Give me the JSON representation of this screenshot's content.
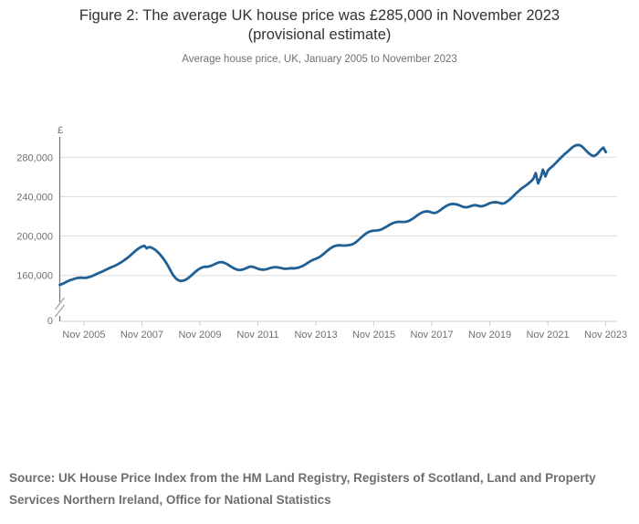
{
  "header": {
    "title_line1": "Figure 2: The average UK house price was £285,000 in November 2023",
    "title_line2": "(provisional estimate)",
    "subtitle": "Average house price, UK, January 2005 to November 2023"
  },
  "footer": {
    "source": "Source: UK House Price Index from the HM Land Registry, Registers of Scotland, Land and Property Services Northern Ireland, Office for National Statistics"
  },
  "colors": {
    "line": "#206095",
    "gridline": "#dcdcdc",
    "x_axis": "#c6d0da",
    "y_axis": "#737373",
    "axis_break": "#9f9f9f",
    "tick_text": "#707071",
    "title_text": "#323232",
    "source_text": "#6e6e6e"
  },
  "chart_data": {
    "type": "line",
    "title": "Figure 2: The average UK house price was £285,000 in November 2023 (provisional estimate)",
    "subtitle": "Average house price, UK, January 2005 to November 2023",
    "unit_label": "£",
    "frequency": "monthly",
    "x_start": "2005-01",
    "x_end": "2023-11",
    "grid": "horizontal",
    "legend": "none",
    "y_axis_break": true,
    "line_color": "#206095",
    "x_tick_labels": [
      "Nov 2005",
      "Nov 2007",
      "Nov 2009",
      "Nov 2011",
      "Nov 2013",
      "Nov 2015",
      "Nov 2017",
      "Nov 2019",
      "Nov 2021",
      "Nov 2023"
    ],
    "x_tick_months": [
      10,
      34,
      58,
      82,
      106,
      130,
      154,
      178,
      202,
      226
    ],
    "y_ticks": [
      0,
      160000,
      200000,
      240000,
      280000
    ],
    "y_tick_labels": [
      "0",
      "160,000",
      "200,000",
      "240,000",
      "280,000"
    ],
    "series": [
      {
        "name": "Average UK house price",
        "values": [
          150400,
          151300,
          152400,
          153800,
          154900,
          155700,
          156500,
          157200,
          157600,
          157700,
          157400,
          157600,
          158200,
          159000,
          160000,
          161200,
          162300,
          163300,
          164400,
          165600,
          166800,
          168000,
          169000,
          170000,
          171300,
          172800,
          174300,
          176000,
          177800,
          179800,
          182000,
          184200,
          186300,
          188000,
          189300,
          190200,
          187500,
          188800,
          188200,
          186800,
          185000,
          182600,
          179800,
          176600,
          173000,
          168800,
          164200,
          160000,
          157000,
          155200,
          154300,
          154600,
          155500,
          157000,
          159000,
          161200,
          163400,
          165400,
          167000,
          168200,
          168800,
          168700,
          169300,
          170200,
          171300,
          172400,
          173300,
          173500,
          172900,
          171800,
          170300,
          168800,
          167300,
          166200,
          165500,
          165600,
          166200,
          167200,
          168300,
          169000,
          168700,
          167800,
          166800,
          166100,
          165800,
          166000,
          166600,
          167400,
          168100,
          168400,
          168200,
          167800,
          167200,
          166800,
          166800,
          167100,
          167300,
          167200,
          167500,
          168100,
          169000,
          170200,
          171700,
          173300,
          174800,
          176000,
          176900,
          178000,
          179500,
          181400,
          183500,
          185600,
          187500,
          189000,
          190000,
          190500,
          190600,
          190400,
          190300,
          190500,
          190900,
          191500,
          192800,
          194600,
          196800,
          199000,
          201200,
          203000,
          204300,
          205100,
          205500,
          205600,
          205900,
          206600,
          207800,
          209200,
          210700,
          212100,
          213200,
          214000,
          214400,
          214400,
          214300,
          214400,
          214900,
          216000,
          217500,
          219200,
          221000,
          222700,
          224000,
          224800,
          225100,
          224800,
          223800,
          223400,
          224000,
          225400,
          227200,
          229000,
          230600,
          231800,
          232500,
          232600,
          232300,
          231600,
          230600,
          229600,
          229200,
          229500,
          230300,
          231100,
          231400,
          230900,
          230200,
          230400,
          231200,
          232300,
          233400,
          234100,
          234300,
          234200,
          233700,
          232900,
          233300,
          234800,
          236600,
          238800,
          241200,
          243600,
          245900,
          248000,
          249800,
          251500,
          253400,
          255500,
          258000,
          264000,
          253500,
          259000,
          267500,
          260500,
          266500,
          269000,
          271000,
          273500,
          276000,
          278500,
          281000,
          283300,
          285300,
          287500,
          289800,
          291500,
          292400,
          292500,
          291300,
          289000,
          286300,
          284000,
          282200,
          281300,
          282300,
          284800,
          287800,
          289800,
          285300
        ]
      }
    ]
  }
}
